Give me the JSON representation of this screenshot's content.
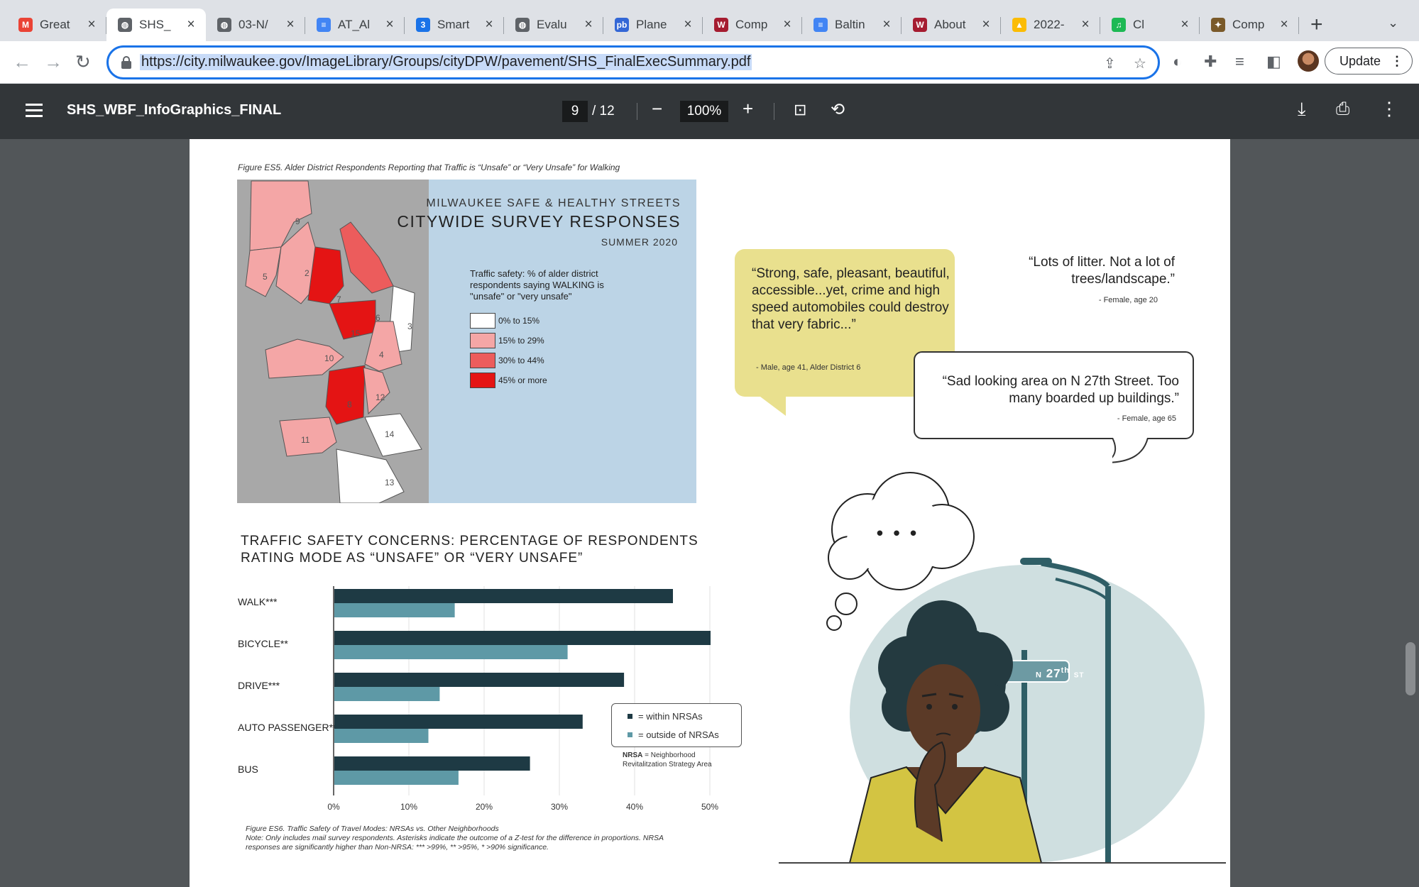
{
  "browser": {
    "tabs": [
      {
        "title": "Great",
        "icon": "gmail-icon",
        "color": "#ea4335"
      },
      {
        "title": "SHS_",
        "icon": "globe-icon",
        "color": "#5f6368",
        "active": true
      },
      {
        "title": "03-N/",
        "icon": "globe-icon",
        "color": "#5f6368"
      },
      {
        "title": "AT_Al",
        "icon": "docs-icon",
        "color": "#4285f4"
      },
      {
        "title": "Smart",
        "icon": "calendar-icon",
        "color": "#1a73e8"
      },
      {
        "title": "Evalu",
        "icon": "globe-icon",
        "color": "#5f6368"
      },
      {
        "title": "Plane",
        "icon": "pb-icon",
        "color": "#3367d6"
      },
      {
        "title": "Comp",
        "icon": "w-icon",
        "color": "#a51c30"
      },
      {
        "title": "Baltin",
        "icon": "docs-icon",
        "color": "#4285f4"
      },
      {
        "title": "About",
        "icon": "w-icon",
        "color": "#a51c30"
      },
      {
        "title": "2022-",
        "icon": "drive-icon",
        "color": "#fbbc04"
      },
      {
        "title": "Cl",
        "icon": "spotify-icon",
        "color": "#1db954"
      },
      {
        "title": "Comp",
        "icon": "seal-icon",
        "color": "#7a5a2a"
      }
    ],
    "url": "https://city.milwaukee.gov/ImageLibrary/Groups/cityDPW/pavement/SHS_FinalExecSummary.pdf",
    "update_label": "Update"
  },
  "pdf": {
    "title": "SHS_WBF_InfoGraphics_FINAL",
    "page_current": "9",
    "page_total": "/ 12",
    "zoom": "100%"
  },
  "map": {
    "caption": "Figure ES5. Alder District Respondents Reporting that Traffic is “Unsafe” or “Very Unsafe” for Walking",
    "title_line1": "MILWAUKEE SAFE & HEALTHY STREETS",
    "title_line2": "CITYWIDE SURVEY RESPONSES",
    "title_line3": "SUMMER 2020",
    "legend_title": "Traffic safety: % of alder district respondents saying WALKING is \"unsafe\" or \"very unsafe\"",
    "legend": [
      {
        "label": "0% to 15%",
        "color": "#ffffff"
      },
      {
        "label": "15% to 29%",
        "color": "#f4a6a6"
      },
      {
        "label": "30% to 44%",
        "color": "#ec5c5c"
      },
      {
        "label": "45% or more",
        "color": "#e41414"
      }
    ],
    "district_numbers": [
      "9",
      "5",
      "2",
      "7",
      "6",
      "3",
      "15",
      "4",
      "10",
      "8",
      "12",
      "14",
      "11",
      "13"
    ]
  },
  "chart_data": {
    "type": "bar",
    "title": "TRAFFIC SAFETY CONCERNS: PERCENTAGE OF RESPONDENTS RATING MODE AS “UNSAFE” OR “VERY UNSAFE”",
    "categories": [
      "WALK***",
      "BICYCLE**",
      "DRIVE***",
      "AUTO PASSENGER***",
      "BUS"
    ],
    "series": [
      {
        "name": "within NRSAs",
        "color": "#1e3a44",
        "values": [
          45,
          50,
          38.5,
          33,
          26
        ]
      },
      {
        "name": "outside of NRSAs",
        "color": "#5e99a6",
        "values": [
          16,
          31,
          14,
          12.5,
          16.5
        ]
      }
    ],
    "xticks": [
      "0%",
      "10%",
      "20%",
      "30%",
      "40%",
      "50%"
    ],
    "xlim": [
      0,
      50
    ],
    "legend_position": "bottom-right",
    "grid": true
  },
  "bar_legend": {
    "within": "= within NRSAs",
    "outside": "= outside of NRSAs",
    "note_bold": "NRSA",
    "note_line1": " = Neighborhood",
    "note_line2": "Revitalitzation Strategy Area"
  },
  "bar_caption": {
    "line1": "Figure ES6. Traffic Safety of Travel Modes: NRSAs vs. Other Neighborhoods",
    "line2": "Note: Only includes mail survey respondents. Asterisks indicate the outcome of a Z-test for the difference in proportions. NRSA responses are significantly higher than Non-NRSA: *** >99%, ** >95%, * >90% significance."
  },
  "quotes": [
    {
      "text": "“Strong, safe, pleasant, beautiful, accessible...yet, crime and high speed automobiles could destroy that very fabric...”",
      "attribution": "- Male, age 41, Alder District 6"
    },
    {
      "text": "“Lots of litter. Not a lot of trees/landscape.”",
      "attribution": "- Female, age 20"
    },
    {
      "text": "“Sad looking area on N 27th Street. Too many boarded up buildings.”",
      "attribution": "- Female, age 65"
    }
  ],
  "street_sign": {
    "prefix": "N",
    "number": "27",
    "suffix": "th",
    "type": "ST"
  },
  "thought": "• • •"
}
